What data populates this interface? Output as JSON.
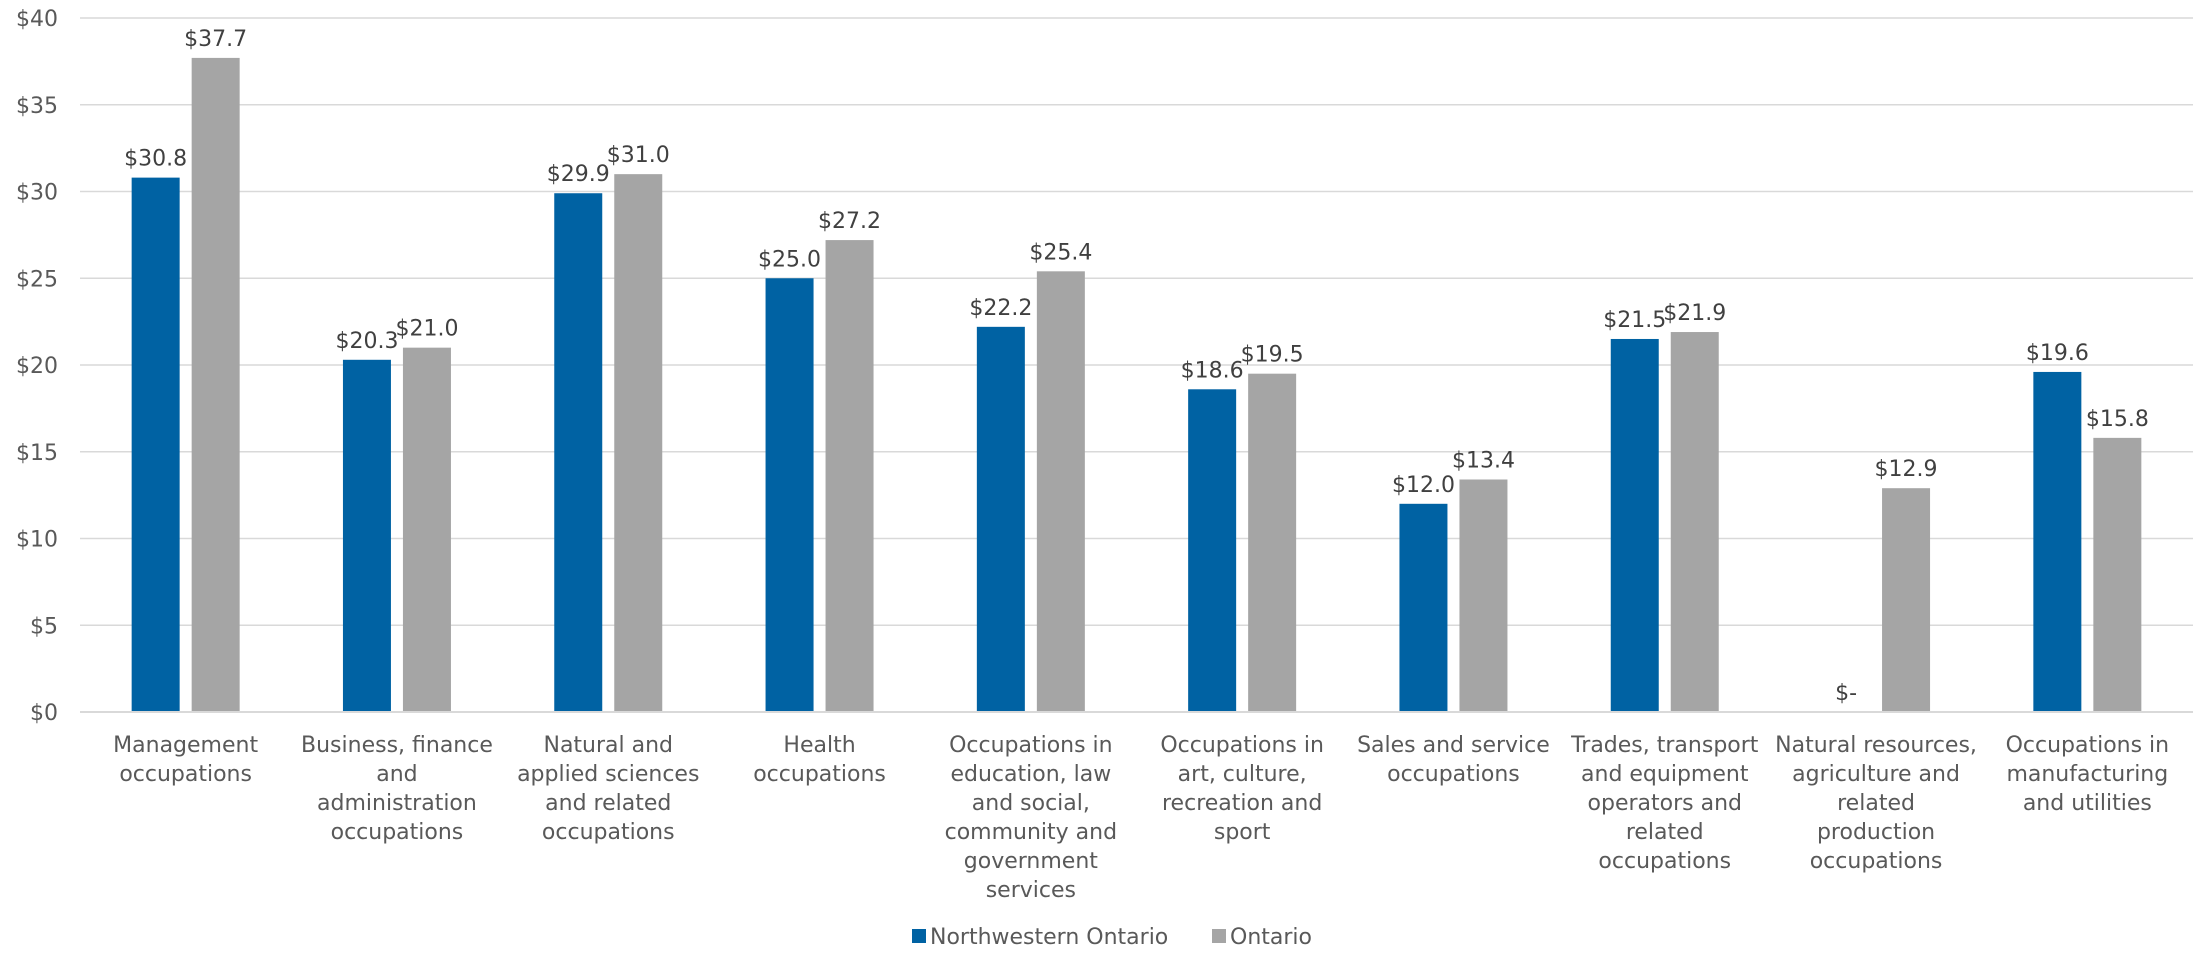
{
  "chart_data": {
    "type": "bar",
    "title": "",
    "xlabel": "",
    "ylabel": "",
    "ylim": [
      0,
      40
    ],
    "y_ticks": [
      {
        "value": 0,
        "label": "$0"
      },
      {
        "value": 5,
        "label": "$5"
      },
      {
        "value": 10,
        "label": "$10"
      },
      {
        "value": 15,
        "label": "$15"
      },
      {
        "value": 20,
        "label": "$20"
      },
      {
        "value": 25,
        "label": "$25"
      },
      {
        "value": 30,
        "label": "$30"
      },
      {
        "value": 35,
        "label": "$35"
      },
      {
        "value": 40,
        "label": "$40"
      }
    ],
    "grid": true,
    "legend_position": "bottom",
    "categories": [
      [
        "Management",
        "occupations"
      ],
      [
        "Business, finance",
        "and",
        "administration",
        "occupations"
      ],
      [
        "Natural and",
        "applied sciences",
        "and related",
        "occupations"
      ],
      [
        "Health",
        "occupations"
      ],
      [
        "Occupations in",
        "education, law",
        "and social,",
        "community and",
        "government",
        "services"
      ],
      [
        "Occupations in",
        "art, culture,",
        "recreation and",
        "sport"
      ],
      [
        "Sales and service",
        "occupations"
      ],
      [
        "Trades, transport",
        "and equipment",
        "operators and",
        "related",
        "occupations"
      ],
      [
        "Natural resources,",
        "agriculture and",
        "related",
        "production",
        "occupations"
      ],
      [
        "Occupations in",
        "manufacturing",
        "and utilities"
      ]
    ],
    "series": [
      {
        "name": "Northwestern Ontario",
        "color": "#0062a3",
        "values": [
          30.8,
          20.3,
          29.9,
          25.0,
          22.2,
          18.6,
          12.0,
          21.5,
          0,
          19.6
        ],
        "labels": [
          "$30.8",
          "$20.3",
          "$29.9",
          "$25.0",
          "$22.2",
          "$18.6",
          "$12.0",
          "$21.5",
          "$-",
          "$19.6"
        ]
      },
      {
        "name": "Ontario",
        "color": "#a5a5a5",
        "values": [
          37.7,
          21.0,
          31.0,
          27.2,
          25.4,
          19.5,
          13.4,
          21.9,
          12.9,
          15.8
        ],
        "labels": [
          "$37.7",
          "$21.0",
          "$31.0",
          "$27.2",
          "$25.4",
          "$19.5",
          "$13.4",
          "$21.9",
          "$12.9",
          "$15.8"
        ]
      }
    ]
  }
}
